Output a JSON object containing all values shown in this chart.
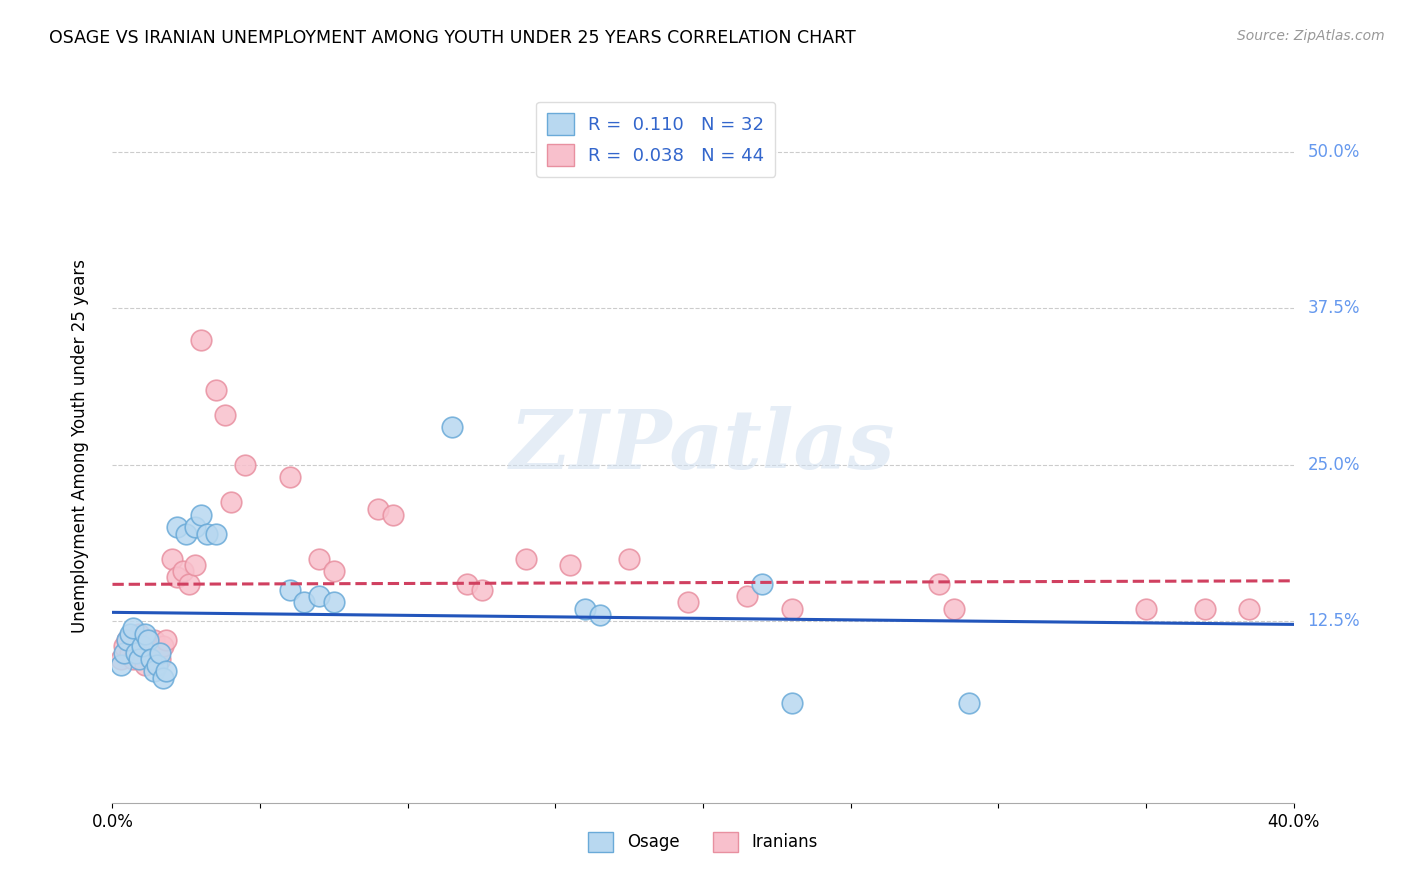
{
  "title": "OSAGE VS IRANIAN UNEMPLOYMENT AMONG YOUTH UNDER 25 YEARS CORRELATION CHART",
  "source": "Source: ZipAtlas.com",
  "ylabel": "Unemployment Among Youth under 25 years",
  "xlim": [
    0.0,
    0.4
  ],
  "ylim": [
    -0.02,
    0.55
  ],
  "xticks": [
    0.0,
    0.05,
    0.1,
    0.15,
    0.2,
    0.25,
    0.3,
    0.35,
    0.4
  ],
  "ytick_positions": [
    0.125,
    0.25,
    0.375,
    0.5
  ],
  "ytick_labels": [
    "12.5%",
    "25.0%",
    "37.5%",
    "50.0%"
  ],
  "watermark": "ZIPatlas",
  "legend_r_osage": "R =  0.110",
  "legend_n_osage": "N = 32",
  "legend_r_iranians": "R =  0.038",
  "legend_n_iranians": "N = 44",
  "legend_label_osage": "Osage",
  "legend_label_iranians": "Iranians",
  "osage_color": "#B8D8F0",
  "osage_edge_color": "#6AAAD8",
  "iranian_color": "#F8C0CC",
  "iranian_edge_color": "#E890A0",
  "trend_osage_color": "#2255BB",
  "trend_iranian_color": "#D04060",
  "background_color": "#FFFFFF",
  "grid_color": "#CCCCCC",
  "right_tick_color": "#6699EE",
  "legend_text_color": "#3366CC",
  "osage_x": [
    0.003,
    0.004,
    0.005,
    0.006,
    0.007,
    0.008,
    0.009,
    0.01,
    0.011,
    0.012,
    0.013,
    0.014,
    0.015,
    0.016,
    0.017,
    0.018,
    0.022,
    0.025,
    0.028,
    0.03,
    0.032,
    0.035,
    0.06,
    0.065,
    0.07,
    0.075,
    0.115,
    0.16,
    0.165,
    0.22,
    0.23,
    0.29
  ],
  "osage_y": [
    0.09,
    0.1,
    0.11,
    0.115,
    0.12,
    0.1,
    0.095,
    0.105,
    0.115,
    0.11,
    0.095,
    0.085,
    0.09,
    0.1,
    0.08,
    0.085,
    0.2,
    0.195,
    0.2,
    0.21,
    0.195,
    0.195,
    0.15,
    0.14,
    0.145,
    0.14,
    0.28,
    0.135,
    0.13,
    0.155,
    0.06,
    0.06
  ],
  "iranian_x": [
    0.003,
    0.004,
    0.005,
    0.006,
    0.007,
    0.008,
    0.009,
    0.01,
    0.011,
    0.012,
    0.013,
    0.014,
    0.015,
    0.016,
    0.017,
    0.018,
    0.02,
    0.022,
    0.024,
    0.026,
    0.028,
    0.03,
    0.035,
    0.038,
    0.04,
    0.045,
    0.06,
    0.07,
    0.075,
    0.09,
    0.095,
    0.12,
    0.125,
    0.14,
    0.155,
    0.175,
    0.195,
    0.215,
    0.23,
    0.28,
    0.285,
    0.35,
    0.37,
    0.385
  ],
  "iranian_y": [
    0.095,
    0.105,
    0.11,
    0.1,
    0.095,
    0.105,
    0.115,
    0.1,
    0.09,
    0.105,
    0.095,
    0.11,
    0.1,
    0.095,
    0.105,
    0.11,
    0.175,
    0.16,
    0.165,
    0.155,
    0.17,
    0.35,
    0.31,
    0.29,
    0.22,
    0.25,
    0.24,
    0.175,
    0.165,
    0.215,
    0.21,
    0.155,
    0.15,
    0.175,
    0.17,
    0.175,
    0.14,
    0.145,
    0.135,
    0.155,
    0.135,
    0.135,
    0.135,
    0.135
  ]
}
